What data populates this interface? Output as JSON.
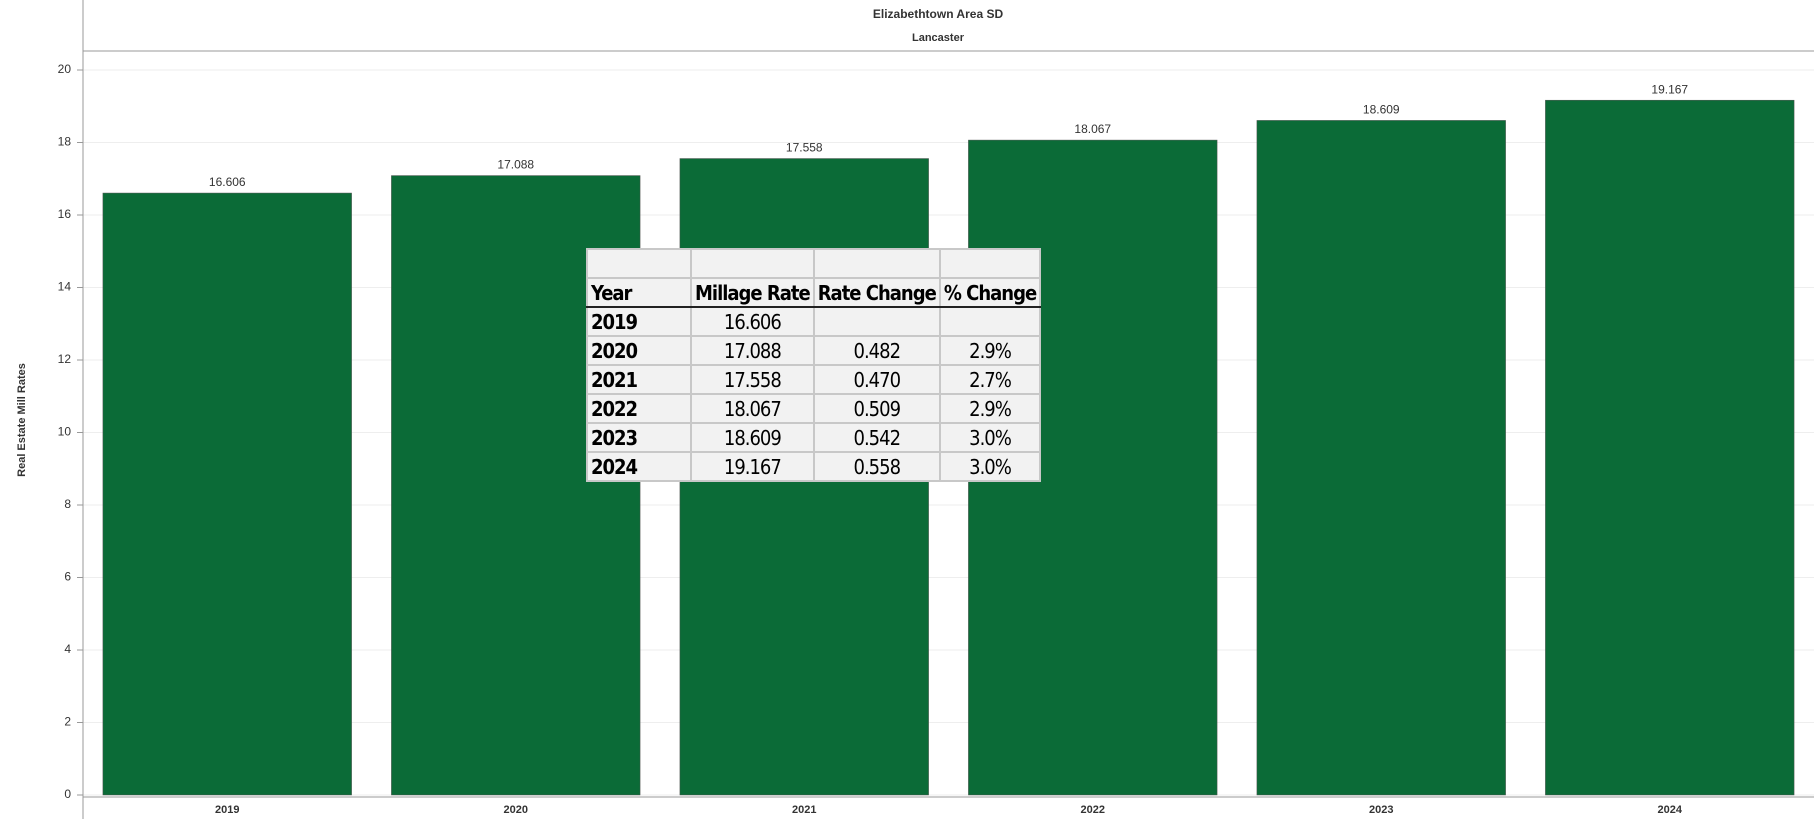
{
  "chart_data": {
    "type": "bar",
    "title": "Elizabethtown Area SD",
    "subtitle": "Lancaster",
    "y_label": "Real Estate Mill Rates",
    "categories": [
      "2019",
      "2020",
      "2021",
      "2022",
      "2023",
      "2024"
    ],
    "values": [
      16.606,
      17.088,
      17.558,
      18.067,
      18.609,
      19.167
    ],
    "color": "#0b6b37",
    "ylim": [
      0,
      20
    ],
    "yticks": [
      0,
      2,
      4,
      6,
      8,
      10,
      12,
      14,
      16,
      18,
      20
    ],
    "grid": true
  },
  "table": {
    "header": [
      "Year",
      "Millage Rate",
      "Rate Change",
      "% Change"
    ],
    "rows": [
      [
        "2019",
        "16.606",
        null,
        null
      ],
      [
        "2020",
        "17.088",
        "0.482",
        "2.9%"
      ],
      [
        "2021",
        "17.558",
        "0.470",
        "2.7%"
      ],
      [
        "2022",
        "18.067",
        "0.509",
        "2.9%"
      ],
      [
        "2023",
        "18.609",
        "0.542",
        "3.0%"
      ],
      [
        "2024",
        "19.167",
        "0.558",
        "3.0%"
      ]
    ]
  }
}
